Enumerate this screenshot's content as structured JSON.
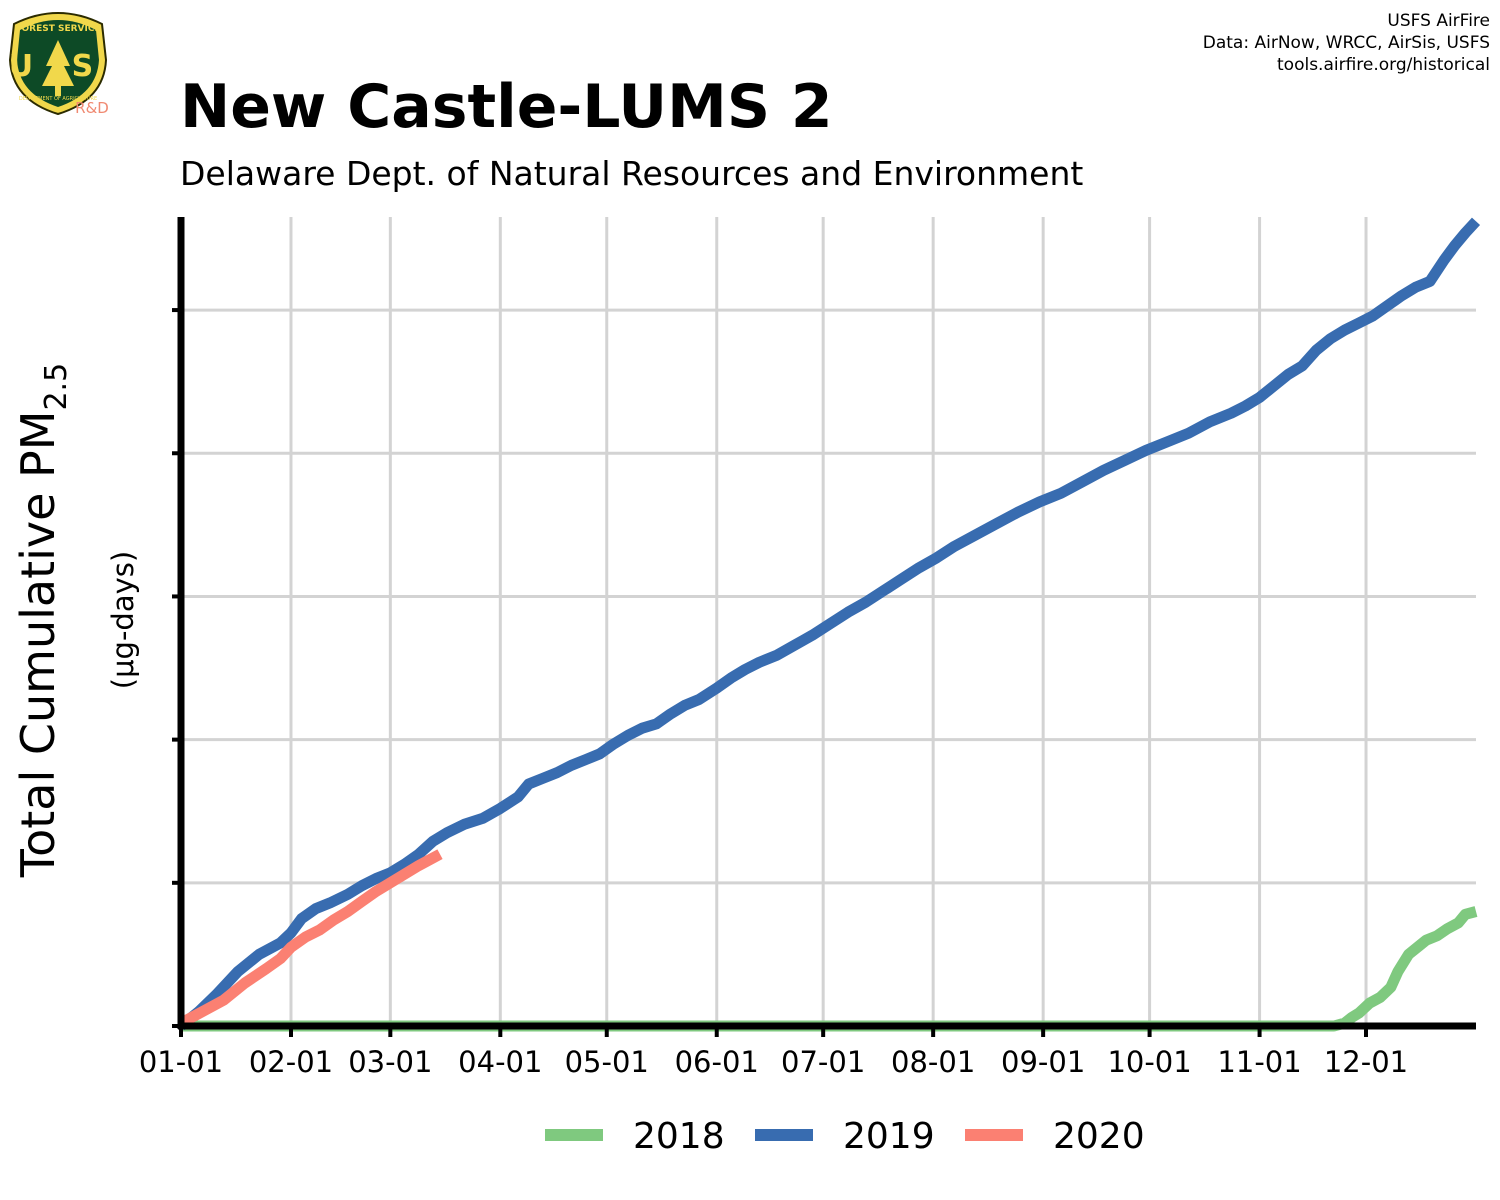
{
  "logo": {
    "ring_text": "FOREST SERVICE",
    "letters": "U S",
    "bottom_text": "DEPARTMENT OF AGRICULTURE",
    "tag": "R&D",
    "colors": {
      "shield": "#0d4a26",
      "gold": "#f1d84b",
      "tag": "#f08a72"
    }
  },
  "credits": [
    "USFS AirFire",
    "Data: AirNow, WRCC, AirSis, USFS",
    "tools.airfire.org/historical"
  ],
  "chart_data": {
    "type": "line",
    "title": "New Castle-LUMS 2",
    "subtitle": "Delaware Dept. of Natural Resources and Environment",
    "ylabel": {
      "main": "Total Cumulative PM",
      "subscript": "2.5",
      "units": "(μg-days)"
    },
    "x_ticks": [
      "01-01",
      "02-01",
      "03-01",
      "04-01",
      "05-01",
      "06-01",
      "07-01",
      "08-01",
      "09-01",
      "10-01",
      "11-01",
      "12-01"
    ],
    "x_tick_days": [
      0,
      31,
      59,
      90,
      120,
      151,
      181,
      212,
      243,
      273,
      304,
      334
    ],
    "xlim": [
      0,
      365
    ],
    "ylim": [
      0,
      5.65
    ],
    "y_gridlines": [
      1,
      2,
      3,
      4,
      5
    ],
    "y_tick_labels_shown": false,
    "grid": true,
    "legend_position": "bottom",
    "series": [
      {
        "name": "2018",
        "color": "#7fc97f",
        "x": [
          0,
          200,
          325,
          328,
          330,
          332,
          335,
          338,
          341,
          343,
          346,
          349,
          351,
          354,
          357,
          360,
          362,
          365
        ],
        "y": [
          0,
          0,
          0,
          0.02,
          0.06,
          0.09,
          0.16,
          0.2,
          0.27,
          0.38,
          0.5,
          0.56,
          0.6,
          0.63,
          0.68,
          0.72,
          0.78,
          0.8
        ]
      },
      {
        "name": "2019",
        "color": "#386cb0",
        "x": [
          0,
          5,
          10,
          16,
          22,
          28,
          31,
          34,
          38,
          42,
          47,
          51,
          55,
          59,
          63,
          67,
          71,
          75,
          80,
          85,
          90,
          95,
          98,
          102,
          106,
          110,
          114,
          118,
          122,
          126,
          130,
          134,
          138,
          142,
          146,
          151,
          155,
          159,
          163,
          168,
          173,
          178,
          183,
          188,
          193,
          198,
          203,
          208,
          213,
          218,
          224,
          230,
          236,
          242,
          248,
          254,
          260,
          266,
          272,
          278,
          284,
          290,
          296,
          300,
          304,
          308,
          312,
          316,
          320,
          324,
          328,
          332,
          336,
          340,
          344,
          348,
          352,
          356,
          359,
          362,
          365
        ],
        "y": [
          0,
          0.1,
          0.22,
          0.38,
          0.5,
          0.58,
          0.65,
          0.75,
          0.82,
          0.86,
          0.92,
          0.98,
          1.03,
          1.07,
          1.13,
          1.2,
          1.29,
          1.35,
          1.41,
          1.45,
          1.52,
          1.6,
          1.69,
          1.73,
          1.77,
          1.82,
          1.86,
          1.9,
          1.97,
          2.03,
          2.08,
          2.11,
          2.18,
          2.24,
          2.28,
          2.36,
          2.43,
          2.49,
          2.54,
          2.59,
          2.66,
          2.73,
          2.81,
          2.89,
          2.96,
          3.04,
          3.12,
          3.2,
          3.27,
          3.35,
          3.43,
          3.51,
          3.59,
          3.66,
          3.72,
          3.8,
          3.88,
          3.95,
          4.02,
          4.08,
          4.14,
          4.22,
          4.28,
          4.33,
          4.39,
          4.47,
          4.55,
          4.61,
          4.72,
          4.8,
          4.86,
          4.91,
          4.96,
          5.03,
          5.1,
          5.16,
          5.2,
          5.35,
          5.45,
          5.54,
          5.62
        ]
      },
      {
        "name": "2020",
        "color": "#fb8072",
        "x": [
          0,
          6,
          12,
          18,
          24,
          28,
          31,
          35,
          39,
          43,
          47,
          51,
          55,
          59,
          63,
          67,
          70,
          73
        ],
        "y": [
          0.02,
          0.1,
          0.18,
          0.3,
          0.4,
          0.47,
          0.55,
          0.62,
          0.67,
          0.74,
          0.8,
          0.87,
          0.94,
          1.0,
          1.06,
          1.12,
          1.16,
          1.2
        ]
      }
    ]
  }
}
